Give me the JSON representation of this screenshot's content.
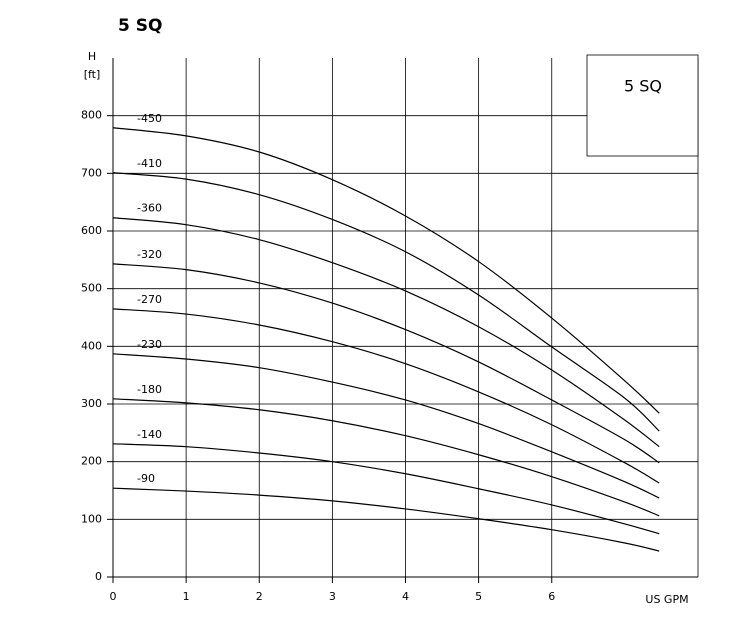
{
  "chart_data": {
    "type": "line",
    "title": "5 SQ",
    "box_label": "5 SQ",
    "y_label": "H",
    "y_unit": "[ft]",
    "x_label": "US GPM",
    "x": [
      0,
      1,
      2,
      3,
      4,
      5,
      6,
      7,
      7.47
    ],
    "xlim": [
      0,
      8
    ],
    "xticks": [
      0,
      1,
      2,
      3,
      4,
      5,
      6
    ],
    "ylim": [
      0,
      900
    ],
    "yticks": [
      0,
      100,
      200,
      300,
      400,
      500,
      600,
      700,
      800
    ],
    "grid": true,
    "series": [
      {
        "name": "-450",
        "color": "#000000",
        "values": [
          779,
          765,
          737,
          689,
          626,
          547,
          449,
          340,
          284
        ]
      },
      {
        "name": "-410",
        "color": "#000000",
        "values": [
          701,
          690,
          663,
          620,
          564,
          489,
          399,
          310,
          253
        ]
      },
      {
        "name": "-360",
        "color": "#000000",
        "values": [
          623,
          611,
          585,
          545,
          496,
          434,
          359,
          272,
          226
        ]
      },
      {
        "name": "-320",
        "color": "#000000",
        "values": [
          543,
          533,
          510,
          475,
          429,
          373,
          307,
          238,
          198
        ]
      },
      {
        "name": "-270",
        "color": "#000000",
        "values": [
          465,
          456,
          437,
          408,
          370,
          321,
          264,
          198,
          163
        ]
      },
      {
        "name": "-230",
        "color": "#000000",
        "values": [
          387,
          378,
          363,
          338,
          307,
          266,
          217,
          165,
          137
        ]
      },
      {
        "name": "-180",
        "color": "#000000",
        "values": [
          309,
          302,
          290,
          271,
          245,
          212,
          174,
          130,
          106
        ]
      },
      {
        "name": "-140",
        "color": "#000000",
        "values": [
          231,
          226,
          215,
          200,
          179,
          153,
          125,
          92,
          75
        ]
      },
      {
        "name": "-90",
        "color": "#000000",
        "values": [
          154,
          149,
          142,
          132,
          118,
          101,
          82,
          59,
          45
        ]
      }
    ]
  }
}
